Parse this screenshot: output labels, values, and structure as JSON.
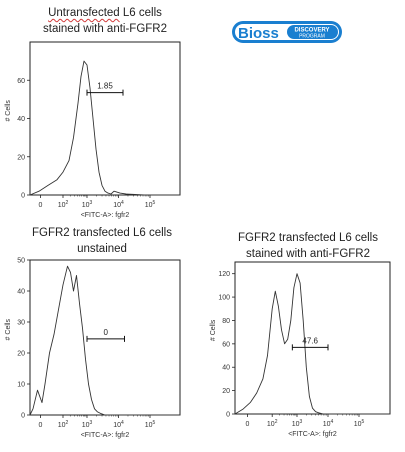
{
  "captions": {
    "panel1": {
      "word1": "Untransfected",
      "rest1": " L6 cells",
      "line2": "stained with  anti-FGFR2"
    },
    "panel2": {
      "line1": "FGFR2 transfected  L6 cells",
      "line2": "unstained"
    },
    "panel3": {
      "line1": "FGFR2 transfected  L6 cells",
      "line2": "stained with  anti-FGFR2"
    }
  },
  "logo": {
    "brand": "Bioss",
    "tag_top": "DISCOVERY",
    "tag_bottom": "PROGRAM",
    "color": "#1a7fd0"
  },
  "chart_data": [
    {
      "type": "line",
      "title": "Untransfected  L6 cells stained with  anti-FGFR2",
      "xlabel": "<FITC-A>: fgfr2",
      "ylabel": "# Cells",
      "ylim": [
        0,
        80
      ],
      "yticks": [
        "0",
        "20",
        "40",
        "60"
      ],
      "yticks_values": [
        0,
        20,
        40,
        60
      ],
      "xtick_labels": [
        {
          "base": "0",
          "exp": ""
        },
        {
          "base": "10",
          "exp": "2"
        },
        {
          "base": "10",
          "exp": "3"
        },
        {
          "base": "10",
          "exp": "4"
        },
        {
          "base": "10",
          "exp": "5"
        }
      ],
      "gate": {
        "label": "1.85",
        "start": "~10^3",
        "end": "~10^4"
      },
      "series": [
        {
          "x": [
            0.0,
            0.06,
            0.12,
            0.18,
            0.22,
            0.26,
            0.29,
            0.32,
            0.34,
            0.36,
            0.38,
            0.4,
            0.42,
            0.44,
            0.46,
            0.48,
            0.5,
            0.52,
            0.54,
            0.56,
            0.6,
            0.64,
            0.7,
            0.76,
            1.0
          ],
          "y": [
            0,
            2,
            5,
            8,
            12,
            18,
            30,
            48,
            62,
            70,
            68,
            56,
            40,
            24,
            12,
            5,
            2,
            1,
            0.5,
            2,
            1,
            0.5,
            0.3,
            0,
            0
          ]
        }
      ]
    },
    {
      "type": "line",
      "title": "FGFR2 transfected  L6 cells unstained",
      "xlabel": "<FITC-A>: fgfr2",
      "ylabel": "# Cells",
      "ylim": [
        0,
        50
      ],
      "yticks": [
        "0",
        "10",
        "20",
        "30",
        "40",
        "50"
      ],
      "yticks_values": [
        0,
        10,
        20,
        30,
        40,
        50
      ],
      "xtick_labels": [
        {
          "base": "0",
          "exp": ""
        },
        {
          "base": "10",
          "exp": "2"
        },
        {
          "base": "10",
          "exp": "3"
        },
        {
          "base": "10",
          "exp": "4"
        },
        {
          "base": "10",
          "exp": "5"
        }
      ],
      "gate": {
        "label": "0",
        "start": "~10^3",
        "end": "~10^4"
      },
      "series": [
        {
          "x": [
            0.0,
            0.02,
            0.05,
            0.08,
            0.1,
            0.13,
            0.16,
            0.19,
            0.22,
            0.25,
            0.27,
            0.29,
            0.31,
            0.33,
            0.35,
            0.37,
            0.39,
            0.41,
            0.43,
            0.45,
            0.47,
            0.5,
            0.53,
            0.56,
            1.0
          ],
          "y": [
            0,
            2,
            8,
            4,
            10,
            20,
            26,
            34,
            42,
            48,
            46,
            40,
            45,
            36,
            28,
            18,
            10,
            5,
            2,
            1,
            0.5,
            0,
            0,
            0,
            0
          ]
        }
      ]
    },
    {
      "type": "line",
      "title": "FGFR2 transfected  L6 cells stained with  anti-FGFR2",
      "xlabel": "<FITC-A>: fgfr2",
      "ylabel": "# Cells",
      "ylim": [
        0,
        130
      ],
      "yticks": [
        "0",
        "20",
        "40",
        "60",
        "80",
        "100",
        "120"
      ],
      "yticks_values": [
        0,
        20,
        40,
        60,
        80,
        100,
        120
      ],
      "xtick_labels": [
        {
          "base": "0",
          "exp": ""
        },
        {
          "base": "10",
          "exp": "2"
        },
        {
          "base": "10",
          "exp": "3"
        },
        {
          "base": "10",
          "exp": "4"
        },
        {
          "base": "10",
          "exp": "5"
        }
      ],
      "gate": {
        "label": "47.6",
        "start": "~10^3",
        "end": "~10^4"
      },
      "series": [
        {
          "x": [
            0.0,
            0.05,
            0.1,
            0.14,
            0.18,
            0.21,
            0.24,
            0.26,
            0.28,
            0.3,
            0.32,
            0.34,
            0.36,
            0.38,
            0.4,
            0.42,
            0.44,
            0.46,
            0.48,
            0.5,
            0.52,
            0.54,
            0.57,
            0.6,
            1.0
          ],
          "y": [
            0,
            4,
            10,
            18,
            30,
            50,
            90,
            105,
            92,
            72,
            60,
            64,
            80,
            108,
            120,
            112,
            80,
            40,
            15,
            5,
            2,
            1,
            0,
            0,
            0
          ]
        }
      ]
    }
  ]
}
